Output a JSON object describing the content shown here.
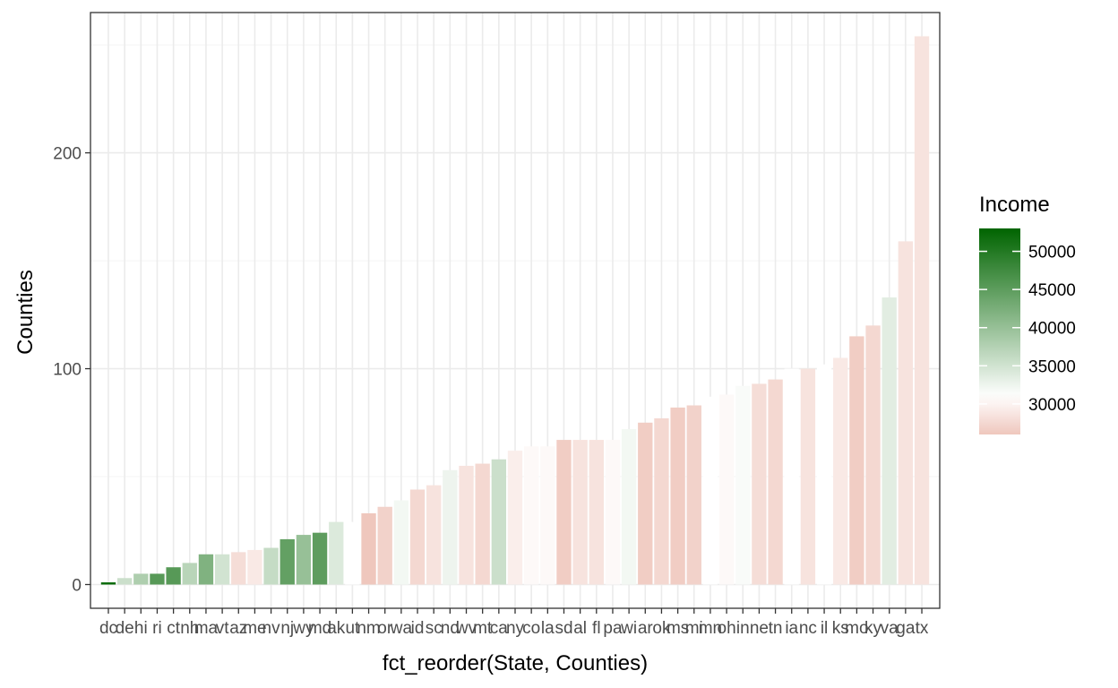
{
  "chart_data": {
    "type": "bar",
    "title": "",
    "xlabel": "fct_reorder(State, Counties)",
    "ylabel": "Counties",
    "ylim": [
      -11,
      265
    ],
    "y_ticks": [
      0,
      100,
      200
    ],
    "grid": true,
    "legend_position": "right",
    "categories": [
      "dc",
      "de",
      "hi",
      "ri",
      "ct",
      "nh",
      "ma",
      "vt",
      "az",
      "me",
      "nv",
      "nj",
      "wy",
      "md",
      "ak",
      "ut",
      "nm",
      "or",
      "wa",
      "id",
      "sc",
      "nd",
      "wv",
      "mt",
      "ca",
      "ny",
      "co",
      "la",
      "sd",
      "al",
      "fl",
      "pa",
      "wi",
      "ar",
      "ok",
      "ms",
      "mi",
      "mn",
      "oh",
      "in",
      "ne",
      "tn",
      "ia",
      "nc",
      "il",
      "ks",
      "mo",
      "ky",
      "va",
      "ga",
      "tx"
    ],
    "values": [
      1,
      3,
      5,
      5,
      8,
      10,
      14,
      14,
      15,
      16,
      17,
      21,
      23,
      24,
      29,
      29,
      33,
      36,
      39,
      44,
      46,
      53,
      55,
      56,
      58,
      62,
      64,
      64,
      67,
      67,
      67,
      67,
      72,
      75,
      77,
      82,
      83,
      87,
      88,
      92,
      93,
      95,
      100,
      100,
      102,
      105,
      115,
      120,
      133,
      159,
      254
    ],
    "fill_values": [
      52500,
      35500,
      38000,
      45500,
      45500,
      37000,
      42000,
      35000,
      28000,
      29000,
      36000,
      44500,
      40000,
      45000,
      34000,
      31000,
      26000,
      27000,
      32000,
      27500,
      28500,
      32500,
      28500,
      27500,
      35500,
      29500,
      30500,
      30500,
      26500,
      28500,
      28500,
      30500,
      32000,
      26500,
      27500,
      26500,
      27000,
      31000,
      30500,
      31500,
      28000,
      27500,
      31000,
      28500,
      31000,
      29000,
      26500,
      27500,
      33500,
      28500,
      28500
    ],
    "legend": {
      "title": "Income",
      "labels": [
        "50000",
        "45000",
        "40000",
        "35000",
        "30000"
      ],
      "breaks": [
        50000,
        45000,
        40000,
        35000,
        30000
      ],
      "range": [
        26000,
        53000
      ]
    },
    "colors": {
      "low": "#efc7bd",
      "mid": "#ffffff",
      "high": "#006400",
      "grid_major": "#ebebeb",
      "grid_minor": "#f4f4f4",
      "panel_border": "#333333"
    },
    "color_midpoint": 31000
  }
}
